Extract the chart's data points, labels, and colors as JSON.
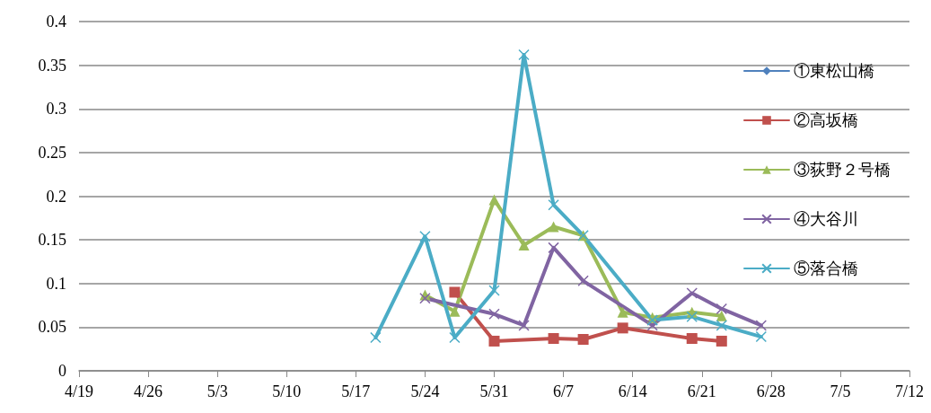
{
  "chart_data": {
    "type": "line",
    "legend": "right",
    "grid": "y",
    "line_style": "solid",
    "xlim": [
      "--04-19",
      "--07-12"
    ],
    "xticks": [
      {
        "value": "--04-19",
        "label": "4/19"
      },
      {
        "value": "--04-26",
        "label": "4/26"
      },
      {
        "value": "--05-03",
        "label": "5/3"
      },
      {
        "value": "--05-10",
        "label": "5/10"
      },
      {
        "value": "--05-17",
        "label": "5/17"
      },
      {
        "value": "--05-24",
        "label": "5/24"
      },
      {
        "value": "--05-31",
        "label": "5/31"
      },
      {
        "value": "--06-07",
        "label": "6/7"
      },
      {
        "value": "--06-14",
        "label": "6/14"
      },
      {
        "value": "--06-21",
        "label": "6/21"
      },
      {
        "value": "--06-28",
        "label": "6/28"
      },
      {
        "value": "--07-05",
        "label": "7/5"
      },
      {
        "value": "--07-12",
        "label": "7/12"
      }
    ],
    "ylim": [
      0,
      0.4
    ],
    "yticks": [
      0,
      0.05,
      0.1,
      0.15,
      0.2,
      0.25,
      0.3,
      0.35,
      0.4
    ],
    "series": [
      {
        "name": "①東松山橋",
        "color": "#4f81bd",
        "marker": "diamond"
      },
      {
        "name": "②高坂橋",
        "color": "#c0504d",
        "marker": "square",
        "x": [
          "--05-27",
          "--05-31",
          "--06-06",
          "--06-09",
          "--06-13",
          "--06-20",
          "--06-23"
        ],
        "values": [
          0.09,
          0.034,
          0.037,
          0.036,
          0.049,
          0.037,
          0.034
        ]
      },
      {
        "name": "③荻野２号橋",
        "color": "#9bbb59",
        "marker": "triangle",
        "x": [
          "--05-24",
          "--05-27",
          "--05-31",
          "--06-03",
          "--06-06",
          "--06-09",
          "--06-13",
          "--06-16",
          "--06-20",
          "--06-23"
        ],
        "values": [
          0.087,
          0.068,
          0.196,
          0.144,
          0.165,
          0.155,
          0.067,
          0.061,
          0.067,
          0.063
        ]
      },
      {
        "name": "④大谷川",
        "color": "#8064a2",
        "marker": "cross",
        "x": [
          "--05-24",
          "--05-31",
          "--06-03",
          "--06-06",
          "--06-09",
          "--06-16",
          "--06-20",
          "--06-23",
          "--06-27"
        ],
        "values": [
          0.083,
          0.065,
          0.052,
          0.141,
          0.103,
          0.052,
          0.089,
          0.071,
          0.052
        ]
      },
      {
        "name": "⑤落合橋",
        "color": "#4bacc6",
        "marker": "cross",
        "x": [
          "--05-19",
          "--05-24",
          "--05-27",
          "--05-31",
          "--06-03",
          "--06-06",
          "--06-09",
          "--06-16",
          "--06-20",
          "--06-23",
          "--06-27"
        ],
        "values": [
          0.038,
          0.154,
          0.038,
          0.092,
          0.362,
          0.19,
          0.155,
          0.058,
          0.062,
          0.052,
          0.039
        ]
      }
    ]
  }
}
